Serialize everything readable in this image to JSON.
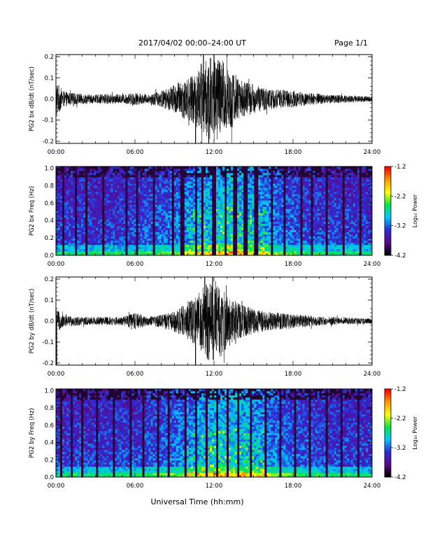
{
  "header": {
    "title": "2017/04/02  00:00–24:00 UT",
    "page_label": "Page 1/1"
  },
  "footer": {
    "xlabel": "Universal Time (hh:mm)"
  },
  "colors": {
    "trace": "#000000",
    "colormap": [
      "#000000",
      "#5a0a8c",
      "#2d2ad6",
      "#00c8ff",
      "#00e64d",
      "#ffff00",
      "#ff9a00",
      "#ff0000"
    ]
  },
  "chart_data": [
    {
      "type": "line",
      "name": "timeseries_bx",
      "ylabel": "PG2 bx dB/dt (nT/sec)",
      "x_tick_labels": [
        "00:00",
        "06:00",
        "12:00",
        "18:00",
        "24:00"
      ],
      "y_ticks": [
        -0.2,
        -0.1,
        0.0,
        0.1,
        0.2
      ],
      "y_tick_labels": [
        "-0.2",
        "-0.1",
        "0.0",
        "0.1",
        "0.2"
      ],
      "xlim": [
        0,
        24
      ],
      "ylim": [
        -0.21,
        0.21
      ],
      "x_unit": "hours UT",
      "envelope_x": [
        0,
        0.5,
        1,
        2,
        3,
        4,
        5,
        6,
        7,
        8,
        8.5,
        9,
        9.5,
        10,
        10.5,
        11,
        11.5,
        12,
        12.5,
        13,
        13.5,
        14,
        15,
        16,
        17,
        18,
        19,
        20,
        21,
        22,
        23,
        24
      ],
      "envelope_amplitude": [
        0.09,
        0.04,
        0.03,
        0.025,
        0.02,
        0.025,
        0.02,
        0.03,
        0.02,
        0.04,
        0.05,
        0.07,
        0.09,
        0.1,
        0.12,
        0.17,
        0.19,
        0.21,
        0.2,
        0.16,
        0.13,
        0.09,
        0.07,
        0.05,
        0.045,
        0.04,
        0.03,
        0.025,
        0.02,
        0.018,
        0.015,
        0.012
      ],
      "spikes": [
        {
          "x": 10.6,
          "y": -0.21
        },
        {
          "x": 11.2,
          "y": 0.21
        },
        {
          "x": 11.6,
          "y": -0.21
        },
        {
          "x": 12.0,
          "y": 0.21
        }
      ]
    },
    {
      "type": "heatmap",
      "name": "spectrogram_bx",
      "ylabel": "PG2 bx Freq (Hz)",
      "x_tick_labels": [
        "00:00",
        "06:00",
        "12:00",
        "18:00",
        "24:00"
      ],
      "y_ticks": [
        0.0,
        0.2,
        0.4,
        0.6,
        0.8,
        1.0
      ],
      "y_tick_labels": [
        "0.0",
        "0.2",
        "0.4",
        "0.6",
        "0.8",
        "1.0"
      ],
      "xlim": [
        0,
        24
      ],
      "ylim": [
        0,
        1.02
      ],
      "colorbar_label": "Log₁₀ Power",
      "colorbar_ticks": [
        -4.2,
        -3.2,
        -2.2,
        -1.2
      ],
      "colorbar_tick_labels": [
        "-4.2",
        "-3.2",
        "-2.2",
        "-1.2"
      ],
      "color_range": [
        -4.2,
        -1.2
      ],
      "activity_center_hours": 13.0,
      "dark_stripe_hours": [
        0.5,
        1.5,
        2.3,
        3.6,
        5.3,
        6.1,
        7.4,
        8.9,
        9.6,
        10.6,
        11.1,
        12.0,
        12.9,
        13.6,
        14.4,
        15.2,
        16.4,
        17.3,
        18.6,
        19.5,
        20.5,
        21.8,
        23.1
      ]
    },
    {
      "type": "line",
      "name": "timeseries_by",
      "ylabel": "PG2 by dB/dt (nT/sec)",
      "x_tick_labels": [
        "00:00",
        "06:00",
        "12:00",
        "18:00",
        "24:00"
      ],
      "y_ticks": [
        -0.2,
        -0.1,
        0.0,
        0.1,
        0.2
      ],
      "y_tick_labels": [
        "-0.2",
        "-0.1",
        "0.0",
        "0.1",
        "0.2"
      ],
      "xlim": [
        0,
        24
      ],
      "ylim": [
        -0.21,
        0.21
      ],
      "x_unit": "hours UT",
      "envelope_x": [
        0,
        0.5,
        1,
        2,
        3,
        4,
        5,
        6,
        7,
        8,
        8.5,
        9,
        9.5,
        10,
        10.5,
        11,
        11.5,
        12,
        12.5,
        13,
        13.5,
        14,
        15,
        16,
        17,
        18,
        19,
        20,
        21,
        22,
        23,
        24
      ],
      "envelope_amplitude": [
        0.06,
        0.03,
        0.025,
        0.02,
        0.02,
        0.02,
        0.018,
        0.04,
        0.02,
        0.03,
        0.04,
        0.05,
        0.07,
        0.09,
        0.11,
        0.15,
        0.19,
        0.2,
        0.17,
        0.13,
        0.1,
        0.08,
        0.06,
        0.045,
        0.04,
        0.035,
        0.028,
        0.022,
        0.02,
        0.016,
        0.014,
        0.012
      ],
      "spikes": [
        {
          "x": 0.05,
          "y": -0.21
        },
        {
          "x": 10.6,
          "y": -0.21
        },
        {
          "x": 11.3,
          "y": 0.21
        },
        {
          "x": 11.9,
          "y": 0.21
        }
      ]
    },
    {
      "type": "heatmap",
      "name": "spectrogram_by",
      "ylabel": "PG2 by Freq (Hz)",
      "x_tick_labels": [
        "00:00",
        "06:00",
        "12:00",
        "18:00",
        "24:00"
      ],
      "y_ticks": [
        0.0,
        0.2,
        0.4,
        0.6,
        0.8,
        1.0
      ],
      "y_tick_labels": [
        "0.0",
        "0.2",
        "0.4",
        "0.6",
        "0.8",
        "1.0"
      ],
      "xlim": [
        0,
        24
      ],
      "ylim": [
        0,
        1.02
      ],
      "colorbar_label": "Log₁₀ Power",
      "colorbar_ticks": [
        -4.2,
        -3.2,
        -2.2,
        -1.2
      ],
      "colorbar_tick_labels": [
        "-4.2",
        "-3.2",
        "-2.2",
        "-1.2"
      ],
      "color_range": [
        -4.2,
        -1.2
      ],
      "activity_center_hours": 13.0,
      "dark_stripe_hours": [
        0.4,
        1.2,
        2.0,
        3.1,
        4.4,
        5.7,
        6.6,
        7.7,
        8.6,
        9.8,
        10.6,
        11.4,
        12.3,
        13.1,
        13.9,
        14.8,
        15.9,
        17.0,
        18.2,
        19.3,
        20.6,
        21.7,
        22.9
      ]
    }
  ]
}
